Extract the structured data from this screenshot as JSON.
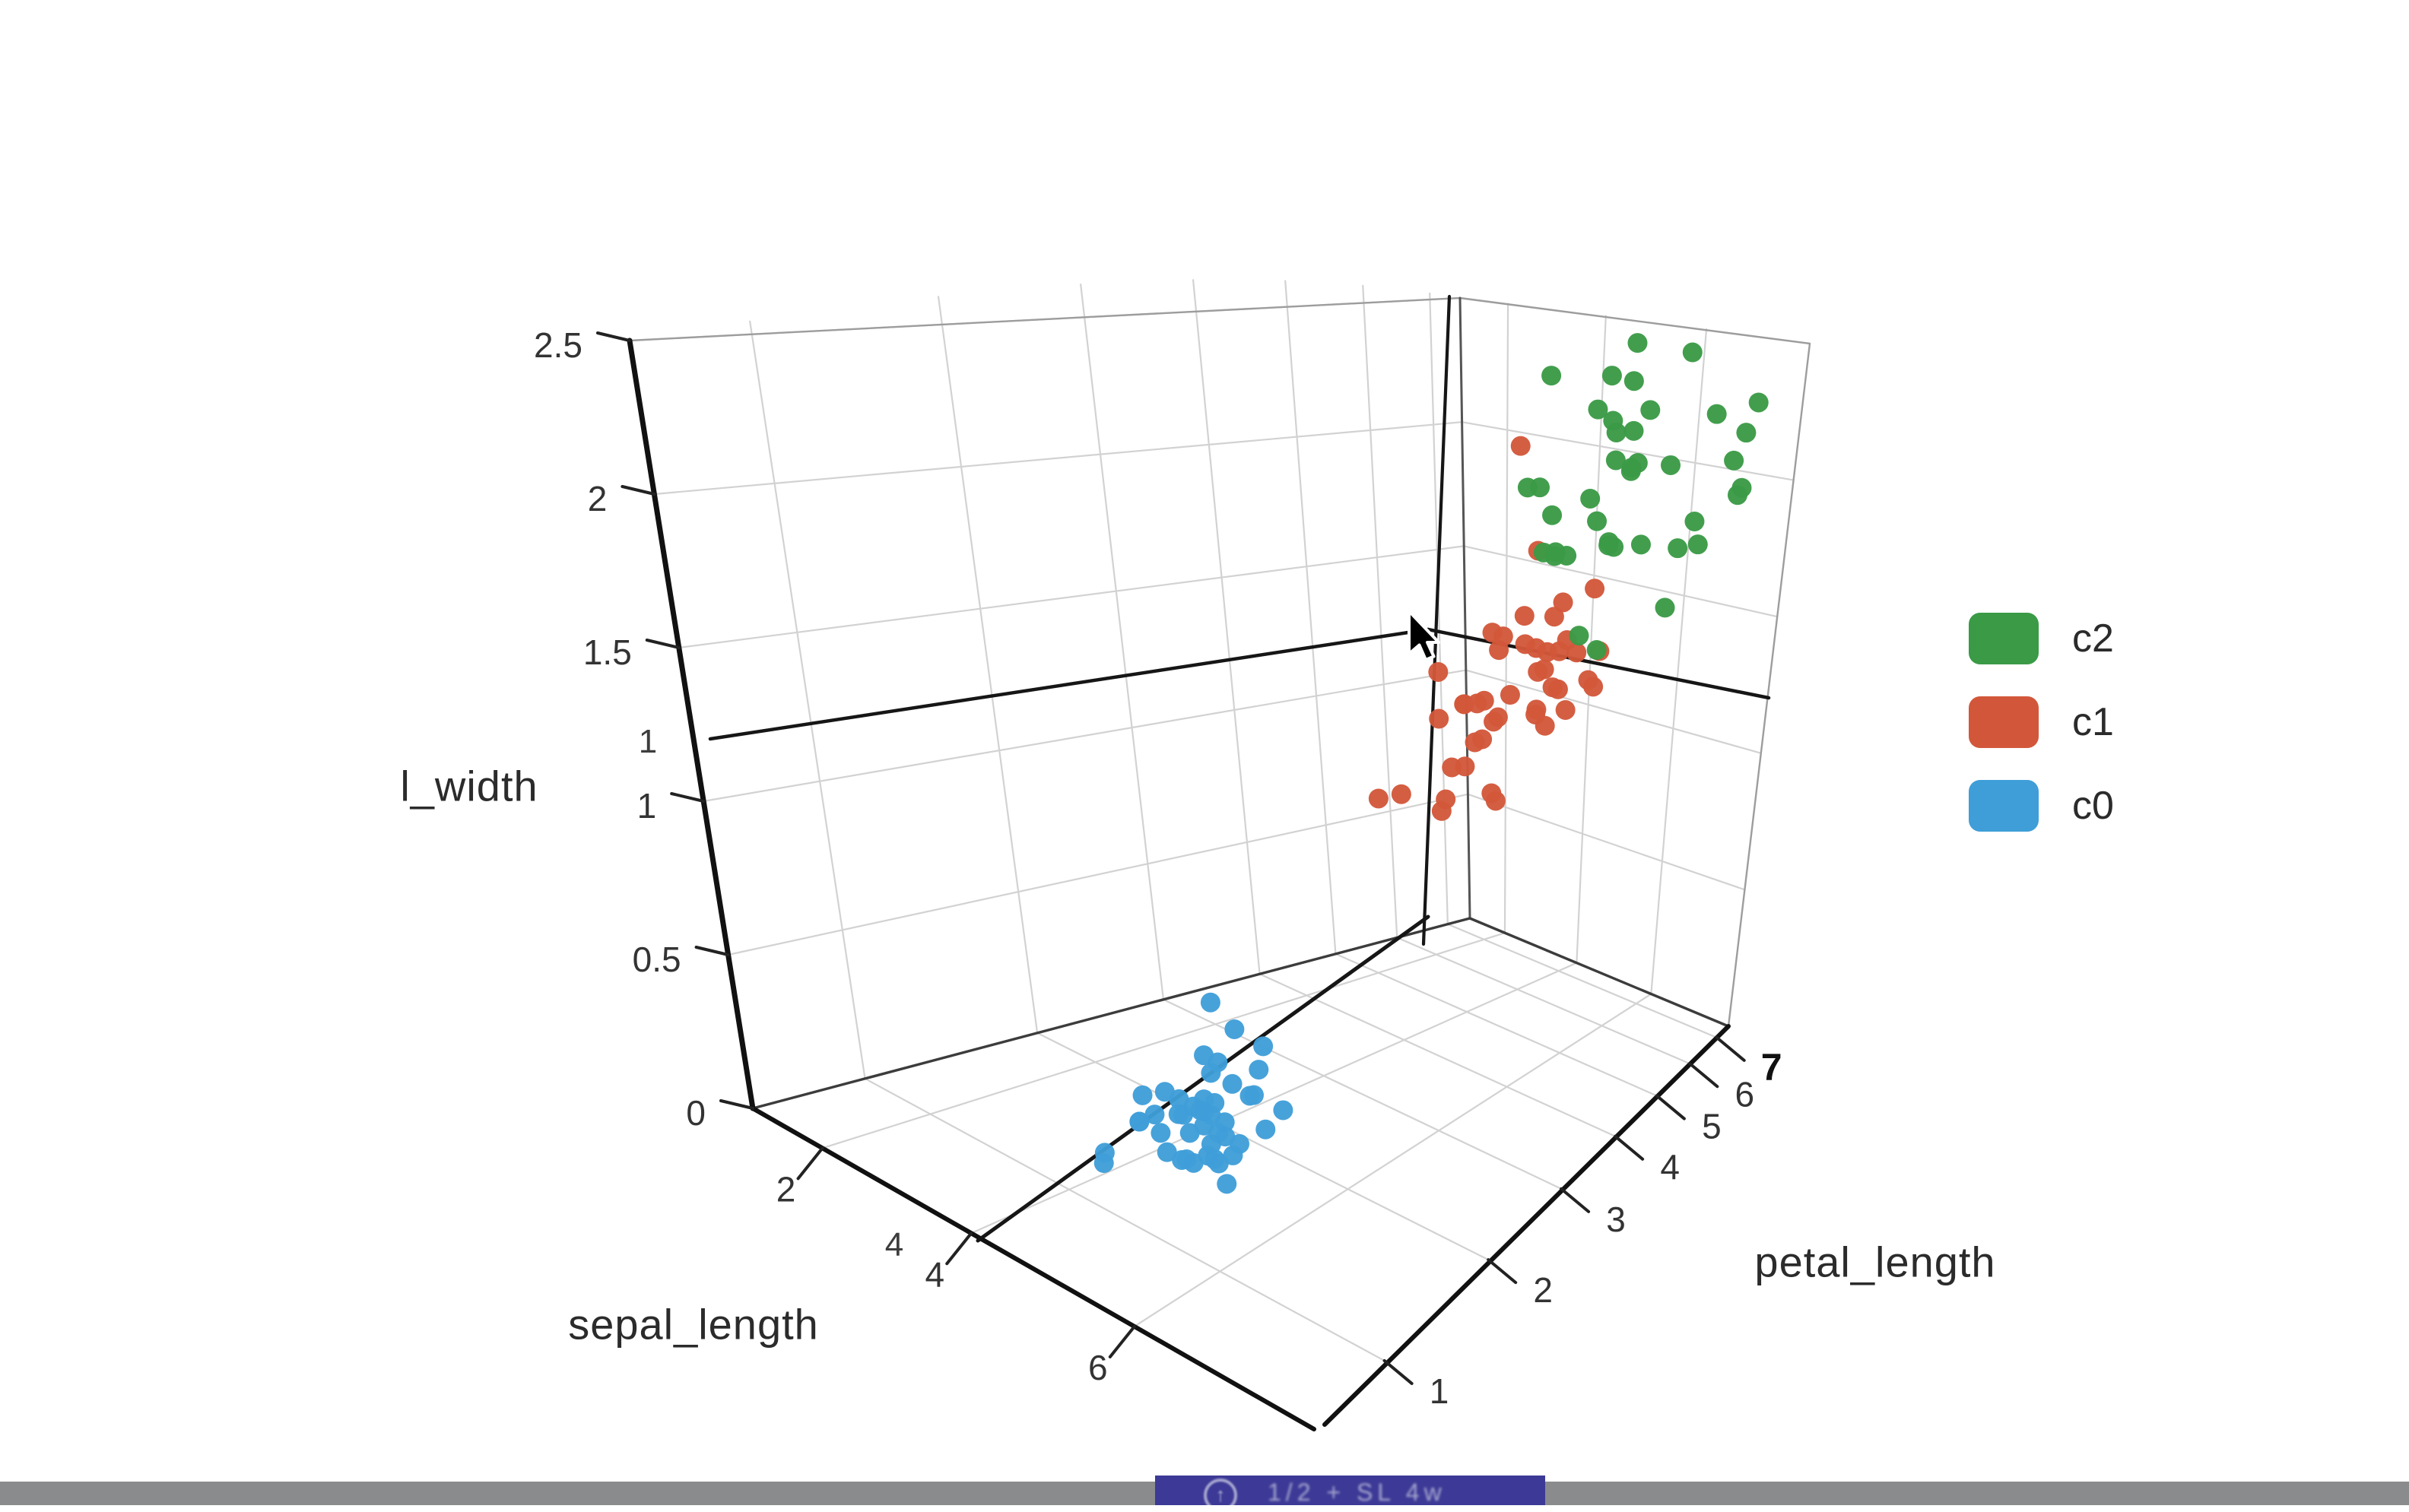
{
  "chart_data": {
    "type": "scatter",
    "subtype": "scatter3d",
    "title": "",
    "grid": true,
    "legend_position": "right",
    "axes": {
      "x": {
        "title": "sepal_length",
        "range": [
          1,
          8
        ],
        "ticks": [
          2,
          4,
          6
        ]
      },
      "y": {
        "title": "petal_length",
        "range": [
          0.5,
          7.5
        ],
        "ticks": [
          1,
          2,
          3,
          4,
          5,
          6,
          7
        ]
      },
      "z": {
        "title": "l_width",
        "range": [
          0,
          2.5
        ],
        "ticks": [
          0,
          0.5,
          1,
          1.5,
          2,
          2.5
        ]
      }
    },
    "series": [
      {
        "name": "c0",
        "color": "#3f9ed8",
        "points": [
          [
            4.9,
            1.4,
            0.2
          ],
          [
            4.7,
            1.3,
            0.2
          ],
          [
            4.6,
            1.5,
            0.2
          ],
          [
            5.0,
            1.4,
            0.3
          ],
          [
            5.4,
            1.7,
            0.4
          ],
          [
            4.6,
            1.4,
            0.3
          ],
          [
            5.0,
            1.5,
            0.1
          ],
          [
            4.4,
            1.4,
            0.2
          ],
          [
            4.9,
            1.5,
            0.1
          ],
          [
            5.4,
            1.5,
            0.2
          ],
          [
            4.8,
            1.6,
            0.2
          ],
          [
            4.8,
            1.4,
            0.1
          ],
          [
            4.3,
            1.1,
            0.1
          ],
          [
            5.8,
            1.2,
            0.2
          ],
          [
            5.7,
            1.5,
            0.4
          ],
          [
            5.4,
            1.3,
            0.4
          ],
          [
            5.1,
            1.4,
            0.3
          ],
          [
            5.7,
            1.7,
            0.3
          ],
          [
            5.1,
            1.5,
            0.3
          ],
          [
            5.4,
            1.7,
            0.2
          ],
          [
            5.1,
            1.5,
            0.4
          ],
          [
            4.6,
            1.0,
            0.2
          ],
          [
            5.1,
            1.7,
            0.5
          ],
          [
            4.8,
            1.9,
            0.2
          ],
          [
            5.0,
            1.6,
            0.2
          ],
          [
            5.0,
            1.6,
            0.4
          ],
          [
            5.2,
            1.5,
            0.2
          ],
          [
            5.2,
            1.4,
            0.2
          ],
          [
            4.7,
            1.6,
            0.2
          ],
          [
            4.8,
            1.6,
            0.4
          ],
          [
            5.4,
            1.5,
            0.4
          ],
          [
            5.2,
            1.2,
            0.2
          ],
          [
            5.5,
            1.3,
            0.2
          ],
          [
            4.9,
            1.4,
            0.1
          ],
          [
            5.0,
            1.2,
            0.2
          ],
          [
            5.5,
            1.4,
            0.2
          ],
          [
            4.9,
            1.5,
            0.2
          ],
          [
            4.4,
            1.3,
            0.2
          ],
          [
            5.1,
            1.5,
            0.2
          ],
          [
            5.0,
            1.3,
            0.3
          ],
          [
            4.5,
            1.3,
            0.3
          ],
          [
            4.4,
            1.3,
            0.2
          ],
          [
            5.0,
            1.6,
            0.6
          ],
          [
            5.1,
            1.9,
            0.4
          ],
          [
            4.8,
            1.4,
            0.3
          ]
        ]
      },
      {
        "name": "c1",
        "color": "#d2573a",
        "points": [
          [
            7.0,
            4.7,
            1.4
          ],
          [
            6.4,
            4.5,
            1.5
          ],
          [
            6.9,
            4.9,
            1.5
          ],
          [
            5.5,
            4.0,
            1.3
          ],
          [
            6.5,
            4.6,
            1.5
          ],
          [
            5.7,
            4.5,
            1.3
          ],
          [
            6.3,
            4.7,
            1.6
          ],
          [
            4.9,
            3.3,
            1.0
          ],
          [
            6.6,
            4.6,
            1.3
          ],
          [
            5.2,
            3.9,
            1.4
          ],
          [
            5.0,
            3.5,
            1.0
          ],
          [
            5.9,
            4.2,
            1.5
          ],
          [
            6.0,
            4.0,
            1.0
          ],
          [
            6.1,
            4.7,
            1.4
          ],
          [
            5.6,
            3.6,
            1.3
          ],
          [
            6.7,
            4.4,
            1.4
          ],
          [
            5.6,
            4.5,
            1.5
          ],
          [
            5.8,
            4.1,
            1.0
          ],
          [
            6.2,
            4.5,
            1.5
          ],
          [
            5.6,
            3.9,
            1.1
          ],
          [
            5.9,
            4.8,
            1.8
          ],
          [
            6.1,
            4.0,
            1.3
          ],
          [
            6.3,
            4.9,
            1.5
          ],
          [
            6.1,
            4.7,
            1.2
          ],
          [
            6.4,
            4.3,
            1.3
          ],
          [
            6.6,
            4.4,
            1.4
          ],
          [
            6.8,
            4.8,
            1.4
          ],
          [
            6.7,
            5.0,
            1.7
          ],
          [
            6.0,
            4.5,
            1.5
          ],
          [
            5.7,
            3.5,
            1.0
          ],
          [
            5.5,
            3.8,
            1.1
          ],
          [
            5.5,
            3.7,
            1.0
          ],
          [
            5.8,
            3.9,
            1.2
          ],
          [
            6.0,
            5.1,
            1.6
          ],
          [
            5.4,
            4.5,
            1.5
          ],
          [
            6.0,
            4.5,
            1.6
          ],
          [
            6.7,
            4.7,
            1.5
          ],
          [
            6.3,
            4.4,
            1.3
          ],
          [
            5.6,
            4.1,
            1.3
          ],
          [
            5.5,
            4.0,
            1.3
          ],
          [
            5.5,
            4.4,
            1.2
          ],
          [
            6.1,
            4.6,
            1.4
          ],
          [
            5.8,
            4.0,
            1.2
          ],
          [
            5.6,
            4.2,
            1.3
          ],
          [
            6.0,
            4.5,
            2.2
          ]
        ]
      },
      {
        "name": "c2",
        "color": "#3a9a46",
        "points": [
          [
            6.3,
            6.0,
            2.5
          ],
          [
            5.8,
            5.1,
            1.9
          ],
          [
            7.1,
            5.9,
            2.1
          ],
          [
            6.3,
            5.6,
            1.8
          ],
          [
            6.5,
            5.8,
            2.2
          ],
          [
            7.6,
            6.6,
            2.1
          ],
          [
            7.3,
            6.3,
            1.8
          ],
          [
            6.7,
            5.8,
            1.8
          ],
          [
            7.2,
            6.1,
            2.5
          ],
          [
            6.5,
            5.1,
            2.0
          ],
          [
            6.4,
            5.3,
            1.9
          ],
          [
            6.8,
            5.5,
            2.1
          ],
          [
            5.7,
            5.0,
            2.0
          ],
          [
            5.8,
            5.1,
            2.4
          ],
          [
            6.4,
            5.3,
            2.3
          ],
          [
            6.5,
            5.5,
            1.8
          ],
          [
            7.7,
            6.7,
            2.2
          ],
          [
            7.7,
            6.9,
            2.3
          ],
          [
            6.9,
            5.7,
            2.3
          ],
          [
            5.6,
            4.9,
            2.0
          ],
          [
            7.7,
            6.7,
            2.0
          ],
          [
            6.3,
            4.9,
            1.8
          ],
          [
            6.7,
            5.7,
            2.1
          ],
          [
            7.2,
            6.0,
            1.8
          ],
          [
            6.2,
            4.8,
            1.8
          ],
          [
            6.1,
            4.9,
            1.8
          ],
          [
            6.4,
            5.6,
            2.1
          ],
          [
            7.2,
            5.8,
            1.6
          ],
          [
            7.4,
            6.1,
            1.9
          ],
          [
            7.9,
            6.4,
            2.0
          ],
          [
            6.4,
            5.6,
            2.2
          ],
          [
            6.3,
            5.1,
            1.5
          ],
          [
            6.1,
            5.6,
            1.4
          ],
          [
            7.7,
            6.1,
            2.3
          ],
          [
            6.3,
            5.6,
            2.4
          ],
          [
            6.4,
            5.5,
            1.8
          ],
          [
            6.0,
            4.8,
            1.8
          ],
          [
            6.9,
            5.4,
            2.1
          ],
          [
            6.7,
            5.6,
            2.4
          ],
          [
            6.9,
            5.1,
            2.3
          ]
        ]
      }
    ],
    "ghost_tick_labels": [
      {
        "text": "1",
        "x": 852,
        "y": 990
      },
      {
        "text": "4",
        "x": 1176,
        "y": 1652
      }
    ]
  },
  "legend": {
    "items": [
      {
        "label": "c2",
        "color": "#3a9a46"
      },
      {
        "label": "c1",
        "color": "#d2573a"
      },
      {
        "label": "c0",
        "color": "#3f9ed8"
      }
    ]
  },
  "titles": {
    "z": "l_width",
    "x": "sepal_length",
    "y": "petal_length"
  },
  "taskbar": {
    "bar_color": "#8a8b8d",
    "accent_color": "#3c3a96",
    "overlay_icon": "up-arrow-circle-icon",
    "overlay_glyphs": "1/2 + SL 4w"
  }
}
